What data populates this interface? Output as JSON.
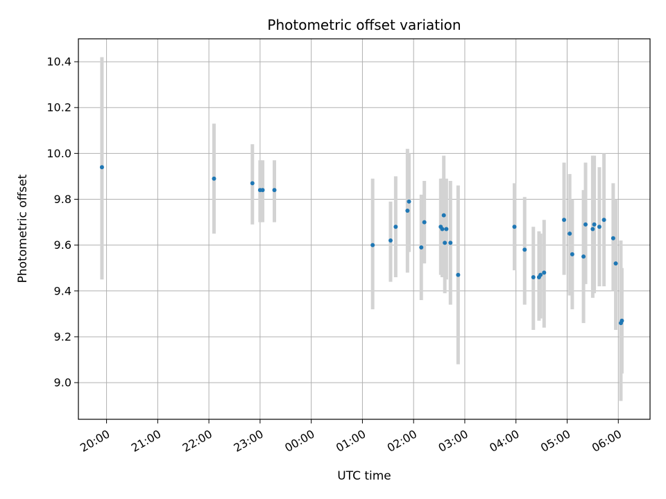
{
  "chart_data": {
    "type": "scatter",
    "title": "Photometric offset variation",
    "xlabel": "UTC time",
    "ylabel": "Photometric offset",
    "x_unit": "hour",
    "xlim": [
      19.45,
      30.62
    ],
    "ylim": [
      8.84,
      10.5
    ],
    "grid": true,
    "point_color": "#1f77b4",
    "errorbar_color": "#d3d3d3",
    "x_ticks": [
      {
        "value": 20,
        "label": "20:00"
      },
      {
        "value": 21,
        "label": "21:00"
      },
      {
        "value": 22,
        "label": "22:00"
      },
      {
        "value": 23,
        "label": "23:00"
      },
      {
        "value": 24,
        "label": "00:00"
      },
      {
        "value": 25,
        "label": "01:00"
      },
      {
        "value": 26,
        "label": "02:00"
      },
      {
        "value": 27,
        "label": "03:00"
      },
      {
        "value": 28,
        "label": "04:00"
      },
      {
        "value": 29,
        "label": "05:00"
      },
      {
        "value": 30,
        "label": "06:00"
      }
    ],
    "y_ticks": [
      {
        "value": 9.0,
        "label": "9.0"
      },
      {
        "value": 9.2,
        "label": "9.2"
      },
      {
        "value": 9.4,
        "label": "9.4"
      },
      {
        "value": 9.6,
        "label": "9.6"
      },
      {
        "value": 9.8,
        "label": "9.8"
      },
      {
        "value": 10.0,
        "label": "10.0"
      },
      {
        "value": 10.2,
        "label": "10.2"
      },
      {
        "value": 10.4,
        "label": "10.4"
      }
    ],
    "points": [
      {
        "x": 19.91,
        "y": 9.94,
        "lo": 9.45,
        "hi": 10.42
      },
      {
        "x": 22.1,
        "y": 9.89,
        "lo": 9.65,
        "hi": 10.13
      },
      {
        "x": 22.85,
        "y": 9.87,
        "lo": 9.69,
        "hi": 10.04
      },
      {
        "x": 23.0,
        "y": 9.84,
        "lo": 9.7,
        "hi": 9.97
      },
      {
        "x": 23.05,
        "y": 9.84,
        "lo": 9.7,
        "hi": 9.97
      },
      {
        "x": 23.28,
        "y": 9.84,
        "lo": 9.7,
        "hi": 9.97
      },
      {
        "x": 25.2,
        "y": 9.6,
        "lo": 9.32,
        "hi": 9.89
      },
      {
        "x": 25.55,
        "y": 9.62,
        "lo": 9.44,
        "hi": 9.79
      },
      {
        "x": 25.65,
        "y": 9.68,
        "lo": 9.46,
        "hi": 9.9
      },
      {
        "x": 25.88,
        "y": 9.75,
        "lo": 9.48,
        "hi": 10.02
      },
      {
        "x": 25.91,
        "y": 9.79,
        "lo": 9.57,
        "hi": 10.0
      },
      {
        "x": 26.15,
        "y": 9.59,
        "lo": 9.36,
        "hi": 9.82
      },
      {
        "x": 26.21,
        "y": 9.7,
        "lo": 9.52,
        "hi": 9.88
      },
      {
        "x": 26.53,
        "y": 9.68,
        "lo": 9.47,
        "hi": 9.89
      },
      {
        "x": 26.56,
        "y": 9.67,
        "lo": 9.46,
        "hi": 9.89
      },
      {
        "x": 26.59,
        "y": 9.73,
        "lo": 9.47,
        "hi": 9.99
      },
      {
        "x": 26.61,
        "y": 9.61,
        "lo": 9.39,
        "hi": 9.82
      },
      {
        "x": 26.64,
        "y": 9.67,
        "lo": 9.45,
        "hi": 9.89
      },
      {
        "x": 26.72,
        "y": 9.61,
        "lo": 9.34,
        "hi": 9.88
      },
      {
        "x": 26.87,
        "y": 9.47,
        "lo": 9.08,
        "hi": 9.86
      },
      {
        "x": 27.97,
        "y": 9.68,
        "lo": 9.49,
        "hi": 9.87
      },
      {
        "x": 28.17,
        "y": 9.58,
        "lo": 9.34,
        "hi": 9.81
      },
      {
        "x": 28.34,
        "y": 9.46,
        "lo": 9.23,
        "hi": 9.68
      },
      {
        "x": 28.45,
        "y": 9.46,
        "lo": 9.27,
        "hi": 9.66
      },
      {
        "x": 28.48,
        "y": 9.47,
        "lo": 9.28,
        "hi": 9.65
      },
      {
        "x": 28.55,
        "y": 9.48,
        "lo": 9.24,
        "hi": 9.71
      },
      {
        "x": 28.94,
        "y": 9.71,
        "lo": 9.47,
        "hi": 9.96
      },
      {
        "x": 29.05,
        "y": 9.65,
        "lo": 9.38,
        "hi": 9.91
      },
      {
        "x": 29.1,
        "y": 9.56,
        "lo": 9.32,
        "hi": 9.8
      },
      {
        "x": 29.32,
        "y": 9.55,
        "lo": 9.26,
        "hi": 9.84
      },
      {
        "x": 29.36,
        "y": 9.69,
        "lo": 9.43,
        "hi": 9.96
      },
      {
        "x": 29.5,
        "y": 9.67,
        "lo": 9.37,
        "hi": 9.99
      },
      {
        "x": 29.53,
        "y": 9.69,
        "lo": 9.39,
        "hi": 9.99
      },
      {
        "x": 29.63,
        "y": 9.68,
        "lo": 9.42,
        "hi": 9.94
      },
      {
        "x": 29.72,
        "y": 9.71,
        "lo": 9.42,
        "hi": 10.0
      },
      {
        "x": 29.9,
        "y": 9.63,
        "lo": 9.4,
        "hi": 9.87
      },
      {
        "x": 29.95,
        "y": 9.52,
        "lo": 9.23,
        "hi": 9.8
      },
      {
        "x": 30.05,
        "y": 9.26,
        "lo": 8.92,
        "hi": 9.62
      },
      {
        "x": 30.07,
        "y": 9.27,
        "lo": 9.04,
        "hi": 9.5
      }
    ]
  }
}
